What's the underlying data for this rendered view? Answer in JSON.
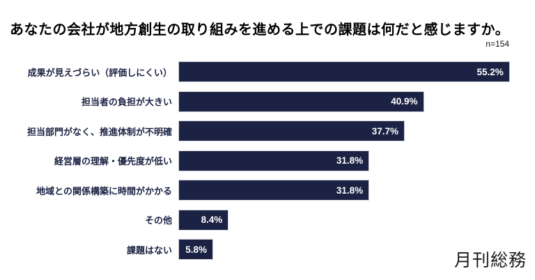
{
  "chart": {
    "title": "あなたの会社が地方創生の取り組みを進める上での課題は何だと感じますか。",
    "sample_size": "n=154"
  },
  "chart_data": {
    "type": "bar",
    "orientation": "horizontal",
    "title": "あなたの会社が地方創生の取り組みを進める上での課題は何だと感じますか。",
    "sample_size": "n=154",
    "categories": [
      "成果が見えづらい（評価しにくい）",
      "担当者の負担が大きい",
      "担当部門がなく、推進体制が不明確",
      "経営層の理解・優先度が低い",
      "地域との関係構築に時間がかかる",
      "その他",
      "課題はない"
    ],
    "values": [
      55.2,
      40.9,
      37.7,
      31.8,
      31.8,
      8.4,
      5.8
    ],
    "value_labels": [
      "55.2%",
      "40.9%",
      "37.7%",
      "31.8%",
      "31.8%",
      "8.4%",
      "5.8%"
    ],
    "xlabel": "",
    "ylabel": "",
    "xlim": [
      0,
      59.4
    ],
    "grid": false,
    "legend": "none",
    "bar_color": "#1b2243",
    "value_label_color": "#ffffff",
    "value_label_position": "inside-end"
  },
  "footer": {
    "logo_text": "月刊総務"
  },
  "colors": {
    "background": "#ffffff",
    "bar": "#1b2243",
    "category_label": "#1b2243",
    "title": "#000000"
  }
}
